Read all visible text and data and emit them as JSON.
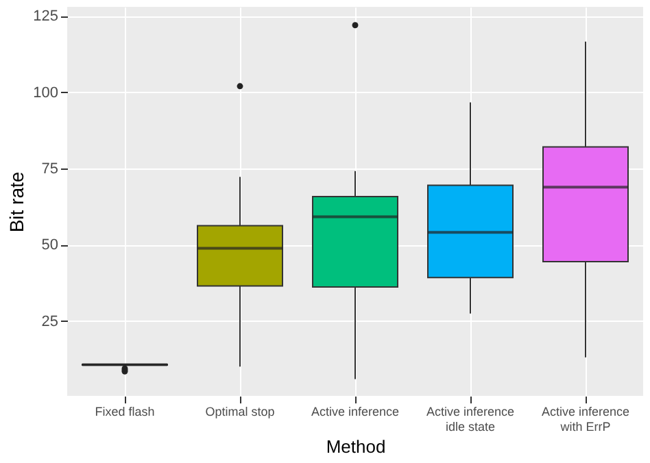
{
  "chart_data": {
    "type": "box",
    "xlabel": "Method",
    "ylabel": "Bit rate",
    "categories": [
      "Fixed flash",
      "Optimal stop",
      "Active inference",
      "Active inference\nidle state",
      "Active inference\nwith ErrP"
    ],
    "colors": [
      "#f8766d",
      "#a3a500",
      "#00bf7d",
      "#00b0f6",
      "#e76bf3"
    ],
    "boxes": [
      {
        "low": 10.5,
        "q1": 10.6,
        "median": 10.7,
        "q3": 10.8,
        "high": 10.9,
        "outliers": [
          8.5,
          9.0,
          9.5
        ]
      },
      {
        "low": 10.1,
        "q1": 36.5,
        "median": 48.9,
        "q3": 56.3,
        "high": 72.3,
        "outliers": [
          102
        ]
      },
      {
        "low": 6.0,
        "q1": 36.2,
        "median": 59.2,
        "q3": 65.8,
        "high": 74.2,
        "outliers": [
          122
        ]
      },
      {
        "low": 27.5,
        "q1": 39.3,
        "median": 54.1,
        "q3": 69.5,
        "high": 96.7
      },
      {
        "low": 13.1,
        "q1": 44.5,
        "median": 68.9,
        "q3": 82.1,
        "high": 116.6
      }
    ],
    "ylim": [
      0.5,
      128
    ],
    "yticks": [
      25,
      50,
      75,
      100,
      125
    ],
    "grid": true
  }
}
